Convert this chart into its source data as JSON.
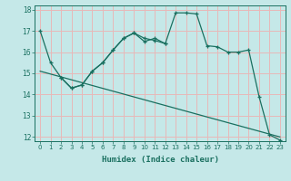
{
  "xlabel": "Humidex (Indice chaleur)",
  "xlim": [
    -0.5,
    23.5
  ],
  "ylim": [
    11.8,
    18.2
  ],
  "yticks": [
    12,
    13,
    14,
    15,
    16,
    17,
    18
  ],
  "xticks": [
    0,
    1,
    2,
    3,
    4,
    5,
    6,
    7,
    8,
    9,
    10,
    11,
    12,
    13,
    14,
    15,
    16,
    17,
    18,
    19,
    20,
    21,
    22,
    23
  ],
  "background_color": "#c5e8e8",
  "grid_color": "#e8b8b8",
  "line_color": "#1a7060",
  "line1_x": [
    0,
    1,
    2,
    3,
    4,
    5,
    6,
    7,
    8,
    9,
    10,
    11,
    12,
    13,
    14,
    15,
    16,
    17,
    18,
    19,
    20,
    21,
    22,
    23
  ],
  "line1_y": [
    17.0,
    15.5,
    14.8,
    14.3,
    14.45,
    15.1,
    15.5,
    16.1,
    16.65,
    16.9,
    16.5,
    16.65,
    16.4,
    17.85,
    17.85,
    17.8,
    16.3,
    16.25,
    16.0,
    16.0,
    16.1,
    13.9,
    12.1,
    11.85
  ],
  "line2_x": [
    2,
    3,
    4,
    5,
    6,
    7,
    8,
    9,
    10,
    11,
    12
  ],
  "line2_y": [
    14.8,
    14.3,
    14.45,
    15.1,
    15.5,
    16.1,
    16.65,
    16.9,
    16.65,
    16.55,
    16.4
  ],
  "line3_x": [
    0,
    23
  ],
  "line3_y": [
    15.1,
    12.0
  ]
}
